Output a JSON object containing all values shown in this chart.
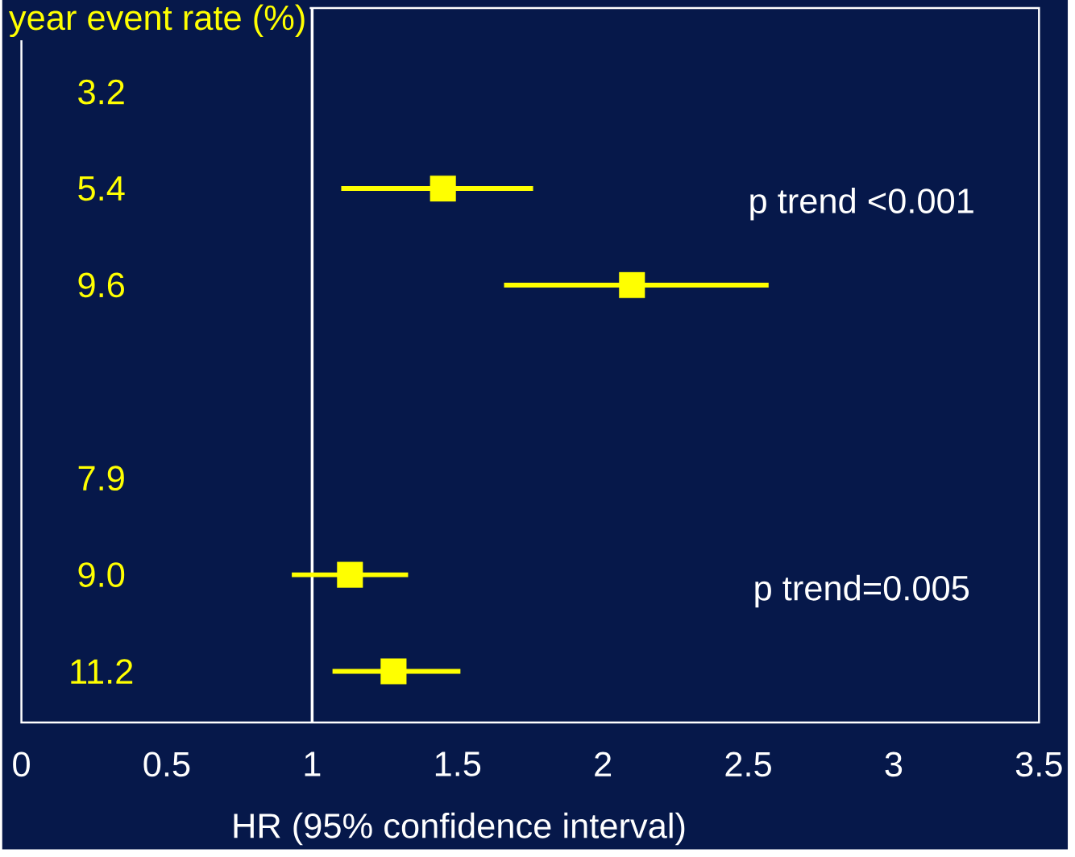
{
  "chart_data": {
    "type": "scatter",
    "orientation": "horizontal",
    "title": "year event rate (%)",
    "xlabel": "HR (95% confidence interval)",
    "categories": [
      "3.2",
      "5.4",
      "9.6",
      null,
      "7.9",
      "9.0",
      "11.2"
    ],
    "values": [
      null,
      1.45,
      2.1,
      null,
      null,
      1.13,
      1.28
    ],
    "errors": [
      null,
      [
        1.1,
        1.76
      ],
      [
        1.66,
        2.57
      ],
      null,
      null,
      [
        0.93,
        1.33
      ],
      [
        1.07,
        1.51
      ]
    ],
    "color": "#ffff00",
    "marker": "square",
    "xlim": [
      0,
      3.5
    ],
    "xticks": [
      0,
      0.5,
      1,
      1.5,
      2,
      2.5,
      3,
      3.5
    ],
    "ref_lines": [
      {
        "axis": "x",
        "value": 1,
        "color": "#ffffff"
      }
    ],
    "annotations": [
      "p trend <0.001",
      "p trend=0.005"
    ]
  }
}
